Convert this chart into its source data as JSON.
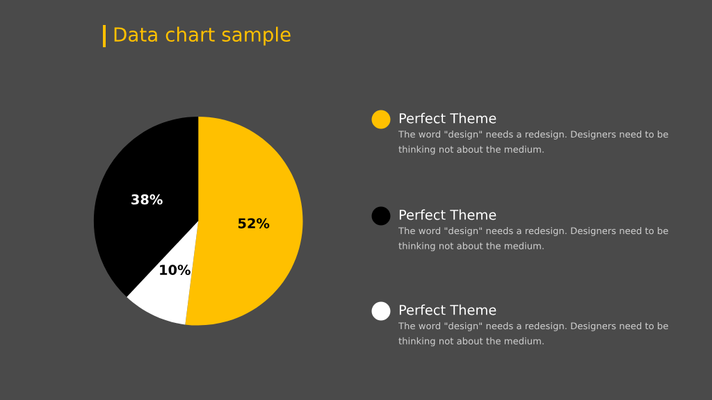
{
  "chart_data": {
    "type": "pie",
    "title": "Data chart sample",
    "categories": [
      "Perfect Theme",
      "Perfect Theme",
      "Perfect Theme"
    ],
    "values": [
      52,
      38,
      10
    ],
    "colors": [
      "#ffc000",
      "#000000",
      "#ffffff"
    ],
    "value_labels": [
      "52%",
      "38%",
      "10%"
    ],
    "legend": "right",
    "annotations": [
      "The word \"design\" needs a redesign. Designers need to be\nthinking not about the medium.",
      "The word \"design\" needs a redesign. Designers need to be\nthinking not about the medium.",
      "The word \"design\" needs a redesign. Designers need to be\nthinking not about the medium."
    ]
  }
}
